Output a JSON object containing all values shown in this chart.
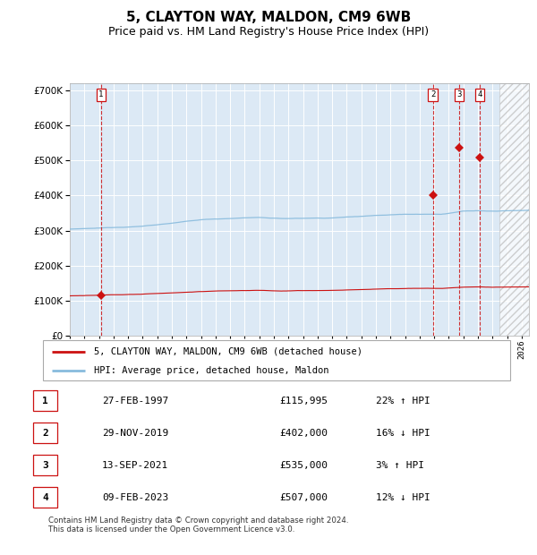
{
  "title": "5, CLAYTON WAY, MALDON, CM9 6WB",
  "subtitle": "Price paid vs. HM Land Registry's House Price Index (HPI)",
  "xlim": [
    1995.0,
    2026.5
  ],
  "ylim": [
    0,
    720000
  ],
  "yticks": [
    0,
    100000,
    200000,
    300000,
    400000,
    500000,
    600000,
    700000
  ],
  "ytick_labels": [
    "£0",
    "£100K",
    "£200K",
    "£300K",
    "£400K",
    "£500K",
    "£600K",
    "£700K"
  ],
  "fig_bg_color": "#f0f0f0",
  "plot_bg_color": "#dce9f5",
  "hpi_line_color": "#88bbdd",
  "price_line_color": "#cc1111",
  "marker_color": "#cc1111",
  "vline_color": "#cc1111",
  "grid_color": "#ffffff",
  "sale_dates_decimal": [
    1997.15,
    2019.91,
    2021.71,
    2023.11
  ],
  "sale_prices": [
    115995,
    402000,
    535000,
    507000
  ],
  "sale_labels": [
    "1",
    "2",
    "3",
    "4"
  ],
  "legend_label_price": "5, CLAYTON WAY, MALDON, CM9 6WB (detached house)",
  "legend_label_hpi": "HPI: Average price, detached house, Maldon",
  "table_rows": [
    [
      "1",
      "27-FEB-1997",
      "£115,995",
      "22% ↑ HPI"
    ],
    [
      "2",
      "29-NOV-2019",
      "£402,000",
      "16% ↓ HPI"
    ],
    [
      "3",
      "13-SEP-2021",
      "£535,000",
      "3% ↑ HPI"
    ],
    [
      "4",
      "09-FEB-2023",
      "£507,000",
      "12% ↓ HPI"
    ]
  ],
  "footnote": "Contains HM Land Registry data © Crown copyright and database right 2024.\nThis data is licensed under the Open Government Licence v3.0.",
  "title_fontsize": 11,
  "subtitle_fontsize": 9,
  "hatch_start": 2024.5
}
